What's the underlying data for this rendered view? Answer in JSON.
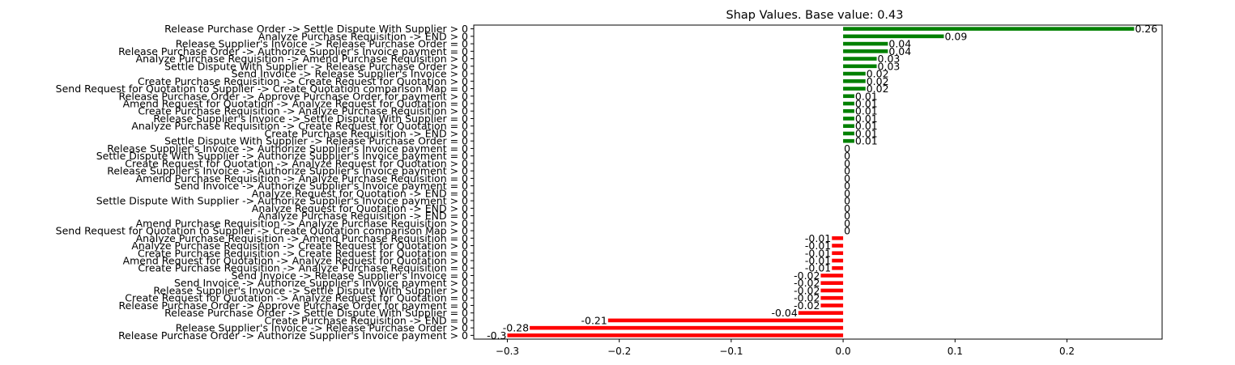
{
  "chart_data": {
    "type": "bar",
    "orientation": "horizontal",
    "title": "Shap Values. Base value: 0.43",
    "xlabel": "",
    "ylabel": "",
    "xlim": [
      -0.33,
      0.285
    ],
    "xticks": [
      -0.3,
      -0.2,
      -0.1,
      0.0,
      0.1,
      0.2
    ],
    "xtick_labels": [
      "−0.3",
      "−0.2",
      "−0.1",
      "0.0",
      "0.1",
      "0.2"
    ],
    "grid": false,
    "legend": "none",
    "colors": {
      "positive": "#008000",
      "negative": "#ff0000"
    },
    "bars": [
      {
        "label": "Release Purchase Order -> Settle Dispute With Supplier > 0",
        "value": 0.26,
        "display": "0.26"
      },
      {
        "label": "Analyze Purchase Requisition -> END > 0",
        "value": 0.09,
        "display": "0.09"
      },
      {
        "label": "Release Supplier's Invoice -> Release Purchase Order = 0",
        "value": 0.04,
        "display": "0.04"
      },
      {
        "label": "Release Purchase Order -> Authorize Supplier's Invoice payment = 0",
        "value": 0.04,
        "display": "0.04"
      },
      {
        "label": "Analyze Purchase Requisition -> Amend Purchase Requisition > 0",
        "value": 0.03,
        "display": "0.03"
      },
      {
        "label": "Settle Dispute With Supplier -> Release Purchase Order > 0",
        "value": 0.03,
        "display": "0.03"
      },
      {
        "label": "Send Invoice -> Release Supplier's Invoice > 0",
        "value": 0.02,
        "display": "0.02"
      },
      {
        "label": "Create Purchase Requisition -> Create Request for Quotation > 0",
        "value": 0.02,
        "display": "0.02"
      },
      {
        "label": "Send Request for Quotation to Supplier -> Create Quotation comparison Map = 0",
        "value": 0.02,
        "display": "0.02"
      },
      {
        "label": "Release Purchase Order -> Approve Purchase Order for payment > 0",
        "value": 0.01,
        "display": "0.01"
      },
      {
        "label": "Amend Request for Quotation -> Analyze Request for Quotation = 0",
        "value": 0.01,
        "display": "0.01"
      },
      {
        "label": "Create Purchase Requisition -> Analyze Purchase Requisition > 0",
        "value": 0.01,
        "display": "0.01"
      },
      {
        "label": "Release Supplier's Invoice -> Settle Dispute With Supplier = 0",
        "value": 0.01,
        "display": "0.01"
      },
      {
        "label": "Analyze Purchase Requisition -> Create Request for Quotation = 0",
        "value": 0.01,
        "display": "0.01"
      },
      {
        "label": "Create Purchase Requisition -> END > 0",
        "value": 0.01,
        "display": "0.01"
      },
      {
        "label": "Settle Dispute With Supplier -> Release Purchase Order = 0",
        "value": 0.01,
        "display": "0.01"
      },
      {
        "label": "Release Supplier's Invoice -> Authorize Supplier's Invoice payment = 0",
        "value": 0,
        "display": "0"
      },
      {
        "label": "Settle Dispute With Supplier -> Authorize Supplier's Invoice payment = 0",
        "value": 0,
        "display": "0"
      },
      {
        "label": "Create Request for Quotation -> Analyze Request for Quotation > 0",
        "value": 0,
        "display": "0"
      },
      {
        "label": "Release Supplier's Invoice -> Authorize Supplier's Invoice payment > 0",
        "value": 0,
        "display": "0"
      },
      {
        "label": "Amend Purchase Requisition -> Analyze Purchase Requisition = 0",
        "value": 0,
        "display": "0"
      },
      {
        "label": "Send Invoice -> Authorize Supplier's Invoice payment = 0",
        "value": 0,
        "display": "0"
      },
      {
        "label": "Analyze Request for Quotation -> END = 0",
        "value": 0,
        "display": "0"
      },
      {
        "label": "Settle Dispute With Supplier -> Authorize Supplier's Invoice payment > 0",
        "value": 0,
        "display": "0"
      },
      {
        "label": "Analyze Request for Quotation -> END > 0",
        "value": 0,
        "display": "0"
      },
      {
        "label": "Analyze Purchase Requisition -> END = 0",
        "value": 0,
        "display": "0"
      },
      {
        "label": "Amend Purchase Requisition -> Analyze Purchase Requisition > 0",
        "value": 0,
        "display": "0"
      },
      {
        "label": "Send Request for Quotation to Supplier -> Create Quotation comparison Map > 0",
        "value": 0,
        "display": "0"
      },
      {
        "label": "Analyze Purchase Requisition -> Amend Purchase Requisition = 0",
        "value": -0.01,
        "display": "-0.01"
      },
      {
        "label": "Analyze Purchase Requisition -> Create Request for Quotation > 0",
        "value": -0.01,
        "display": "-0.01"
      },
      {
        "label": "Create Purchase Requisition -> Create Request for Quotation = 0",
        "value": -0.01,
        "display": "-0.01"
      },
      {
        "label": "Amend Request for Quotation -> Analyze Request for Quotation > 0",
        "value": -0.01,
        "display": "-0.01"
      },
      {
        "label": "Create Purchase Requisition -> Analyze Purchase Requisition = 0",
        "value": -0.01,
        "display": "-0.01"
      },
      {
        "label": "Send Invoice -> Release Supplier's Invoice = 0",
        "value": -0.02,
        "display": "-0.02"
      },
      {
        "label": "Send Invoice -> Authorize Supplier's Invoice payment > 0",
        "value": -0.02,
        "display": "-0.02"
      },
      {
        "label": "Release Supplier's Invoice -> Settle Dispute With Supplier > 0",
        "value": -0.02,
        "display": "-0.02"
      },
      {
        "label": "Create Request for Quotation -> Analyze Request for Quotation = 0",
        "value": -0.02,
        "display": "-0.02"
      },
      {
        "label": "Release Purchase Order -> Approve Purchase Order for payment = 0",
        "value": -0.02,
        "display": "-0.02"
      },
      {
        "label": "Release Purchase Order -> Settle Dispute With Supplier = 0",
        "value": -0.04,
        "display": "-0.04"
      },
      {
        "label": "Create Purchase Requisition -> END = 0",
        "value": -0.21,
        "display": "-0.21"
      },
      {
        "label": "Release Supplier's Invoice -> Release Purchase Order > 0",
        "value": -0.28,
        "display": "-0.28"
      },
      {
        "label": "Release Purchase Order -> Authorize Supplier's Invoice payment > 0",
        "value": -0.3,
        "display": "-0.3"
      }
    ]
  }
}
